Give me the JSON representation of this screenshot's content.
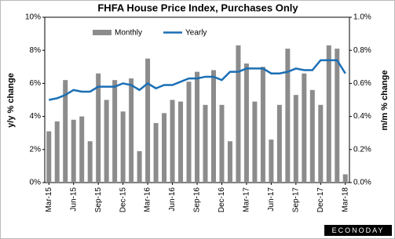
{
  "chart_data": {
    "type": "bar-line",
    "title": "FHFA House  Price Index, Purchases Only",
    "ylabel": "y/y % change",
    "y2label": "m/m % change",
    "source": "ECONODAY",
    "categories": [
      "Mar-15",
      null,
      null,
      "Jun-15",
      null,
      null,
      "Sep-15",
      null,
      null,
      "Dec-15",
      null,
      null,
      "Mar-16",
      null,
      null,
      "Jun-16",
      null,
      null,
      "Sep-16",
      null,
      null,
      "Dec-16",
      null,
      null,
      "Mar-17",
      null,
      null,
      "Jun-17",
      null,
      null,
      "Sep-17",
      null,
      null,
      "Dec-17",
      null,
      null,
      "Mar-18"
    ],
    "series": [
      {
        "name": "Monthly",
        "kind": "bar",
        "axis": "y2",
        "color": "#8c8c8c",
        "values": [
          0.31,
          0.37,
          0.62,
          0.38,
          0.4,
          0.25,
          0.66,
          0.5,
          0.62,
          0.43,
          0.63,
          0.19,
          0.75,
          0.36,
          0.42,
          0.5,
          0.49,
          0.61,
          0.67,
          0.47,
          0.68,
          0.47,
          0.25,
          0.83,
          0.72,
          0.49,
          0.7,
          0.26,
          0.47,
          0.81,
          0.53,
          0.66,
          0.56,
          0.47,
          0.83,
          0.81,
          0.05
        ]
      },
      {
        "name": "Yearly",
        "kind": "line",
        "color": "#1a6fb5",
        "values": [
          5.0,
          5.1,
          5.3,
          5.6,
          5.5,
          5.5,
          5.8,
          5.8,
          5.8,
          6.0,
          5.9,
          5.6,
          6.0,
          5.7,
          5.9,
          5.9,
          6.1,
          6.3,
          6.3,
          6.4,
          6.4,
          6.2,
          6.7,
          6.7,
          6.9,
          6.9,
          6.9,
          6.6,
          6.6,
          6.7,
          6.9,
          6.8,
          6.8,
          7.4,
          7.4,
          7.4,
          6.6
        ]
      }
    ],
    "ylim": [
      0,
      10
    ],
    "yticks": [
      {
        "value": 0,
        "label": "0%"
      },
      {
        "value": 2,
        "label": "2%"
      },
      {
        "value": 4,
        "label": "4%"
      },
      {
        "value": 6,
        "label": "6%"
      },
      {
        "value": 8,
        "label": "8%"
      },
      {
        "value": 10,
        "label": "10%"
      }
    ],
    "y2lim": [
      0,
      1
    ],
    "y2ticks": [
      {
        "value": 0,
        "label": "0.0%"
      },
      {
        "value": 0.2,
        "label": "0.2%"
      },
      {
        "value": 0.4,
        "label": "0.4%"
      },
      {
        "value": 0.6,
        "label": "0.6%"
      },
      {
        "value": 0.8,
        "label": "0.8%"
      },
      {
        "value": 1,
        "label": "1.0%"
      }
    ],
    "grid": false,
    "legend": "top"
  }
}
